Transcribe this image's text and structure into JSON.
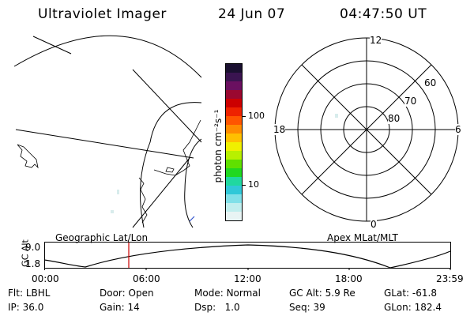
{
  "header": {
    "instrument": "Ultraviolet Imager",
    "date": "24 Jun 07",
    "time": "04:47:50 UT"
  },
  "colorbar": {
    "unit_label": "photon cm⁻²s⁻¹",
    "ticks": [
      "100",
      "10"
    ],
    "colors": [
      "#1a1030",
      "#3a1450",
      "#6a1060",
      "#9a0830",
      "#cc0000",
      "#ee2200",
      "#ff5500",
      "#ff8c00",
      "#ffc000",
      "#f0f000",
      "#b8f000",
      "#60e000",
      "#20d820",
      "#20d8a0",
      "#30c8d8",
      "#80e0e8",
      "#c0eeee",
      "#e8f4f4"
    ]
  },
  "geo_panel": {
    "label": "Geographic Lat/Lon"
  },
  "polar_panel": {
    "label": "Apex MLat/MLT",
    "mlt_labels": {
      "top": "12",
      "bottom": "0",
      "left": "18",
      "right": "6"
    },
    "lat_labels": [
      "60",
      "70",
      "80"
    ]
  },
  "altitude_plot": {
    "ylabel": "GC Alt",
    "yticks": [
      "9.0",
      "1.8"
    ],
    "xticks": [
      "00:00",
      "06:00",
      "12:00",
      "18:00",
      "23:59"
    ],
    "cursor_color": "#cc0000"
  },
  "info": {
    "row1": [
      {
        "key": "Flt:",
        "value": "LBHL"
      },
      {
        "key": "Door:",
        "value": "Open"
      },
      {
        "key": "Mode:",
        "value": "Normal"
      },
      {
        "key": "GC Alt:",
        "value": "5.9 Re"
      },
      {
        "key": "GLat:",
        "value": "-61.8"
      }
    ],
    "row2": [
      {
        "key": "IP:",
        "value": "36.0"
      },
      {
        "key": "Gain:",
        "value": "14"
      },
      {
        "key": "Dsp:",
        "value": "1.0"
      },
      {
        "key": "Seq:",
        "value": "39"
      },
      {
        "key": "GLon:",
        "value": "182.4"
      }
    ]
  }
}
